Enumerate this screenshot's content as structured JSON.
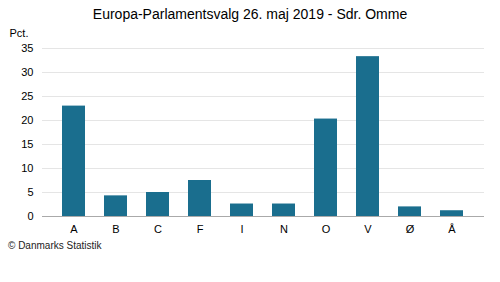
{
  "chart_data": {
    "type": "bar",
    "title": "Europa-Parlamentsvalg 26. maj 2019 - Sdr. Omme",
    "ylabel": "Pct.",
    "caption": "© Danmarks Statistik",
    "categories": [
      "A",
      "B",
      "C",
      "F",
      "I",
      "N",
      "O",
      "V",
      "Ø",
      "Å"
    ],
    "values": [
      23.0,
      4.3,
      5.0,
      7.5,
      2.6,
      2.6,
      20.3,
      33.3,
      2.0,
      1.2
    ],
    "color": "#1a6e8e",
    "ylim": [
      0,
      35
    ],
    "yticks": [
      0,
      5,
      10,
      15,
      20,
      25,
      30,
      35
    ],
    "grid": true
  }
}
